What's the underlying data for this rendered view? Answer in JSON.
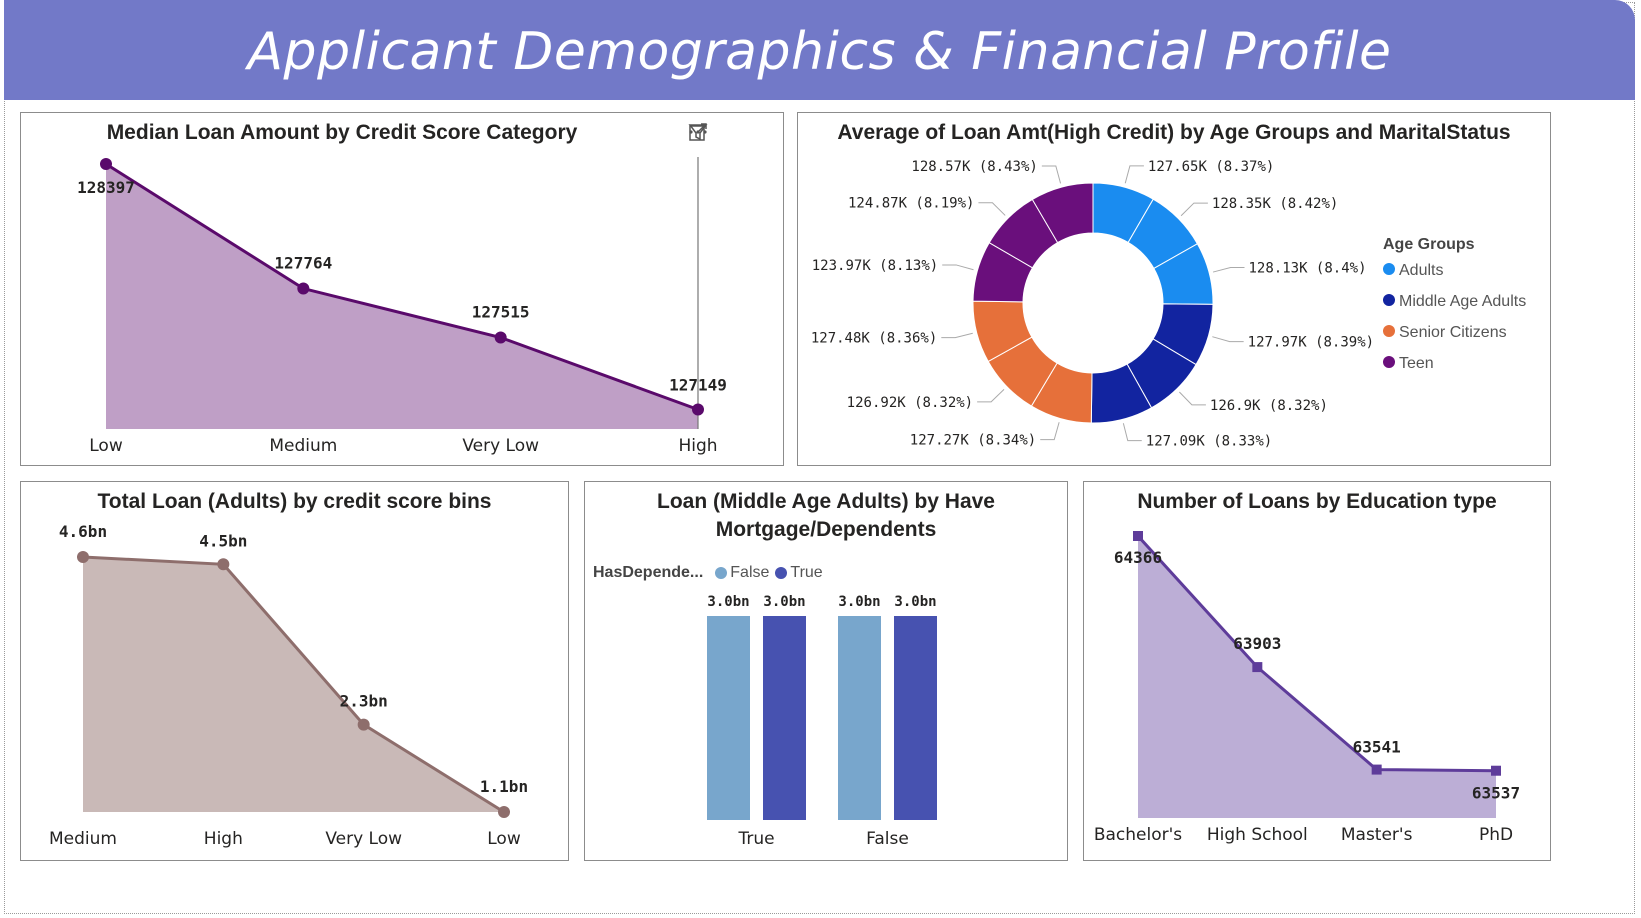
{
  "page": {
    "title": "Applicant Demographics & Financial Profile"
  },
  "header_icons": [
    "filter-icon",
    "focus-mode-icon",
    "more-options-icon"
  ],
  "chart_data": [
    {
      "id": "median_loan",
      "type": "area",
      "title": "Median Loan Amount by Credit Score Category",
      "categories": [
        "Low",
        "Medium",
        "Very Low",
        "High"
      ],
      "values": [
        128397,
        127764,
        127515,
        127149
      ],
      "value_labels": [
        "128397",
        "127764",
        "127515",
        "127149"
      ],
      "ylim": [
        127050,
        128397
      ],
      "line_color": "#5a0a6b",
      "fill_color": "#bf9fc6"
    },
    {
      "id": "avg_loan_donut",
      "type": "pie",
      "title": "Average of Loan Amt(High Credit) by Age Groups and MaritalStatus",
      "legend": {
        "title": "Age Groups",
        "position": "right",
        "items": [
          {
            "name": "Adults",
            "color": "#1a8cf0"
          },
          {
            "name": "Middle Age Adults",
            "color": "#1224a0"
          },
          {
            "name": "Senior Citizens",
            "color": "#e6703a"
          },
          {
            "name": "Teen",
            "color": "#6a0f7c"
          }
        ]
      },
      "slices": [
        {
          "label": "127.65K (8.37%)",
          "value": 127.65,
          "group": "Adults"
        },
        {
          "label": "128.35K (8.42%)",
          "value": 128.35,
          "group": "Adults"
        },
        {
          "label": "128.13K (8.4%)",
          "value": 128.13,
          "group": "Adults"
        },
        {
          "label": "127.97K (8.39%)",
          "value": 127.97,
          "group": "Middle Age Adults"
        },
        {
          "label": "126.9K (8.32%)",
          "value": 126.9,
          "group": "Middle Age Adults"
        },
        {
          "label": "127.09K (8.33%)",
          "value": 127.09,
          "group": "Middle Age Adults"
        },
        {
          "label": "127.27K (8.34%)",
          "value": 127.27,
          "group": "Senior Citizens"
        },
        {
          "label": "126.92K (8.32%)",
          "value": 126.92,
          "group": "Senior Citizens"
        },
        {
          "label": "127.48K (8.36%)",
          "value": 127.48,
          "group": "Senior Citizens"
        },
        {
          "label": "123.97K (8.13%)",
          "value": 123.97,
          "group": "Teen"
        },
        {
          "label": "124.87K (8.19%)",
          "value": 124.87,
          "group": "Teen"
        },
        {
          "label": "128.57K (8.43%)",
          "value": 128.57,
          "group": "Teen"
        }
      ]
    },
    {
      "id": "total_loan_adults",
      "type": "area",
      "title": "Total Loan (Adults) by credit score bins",
      "categories": [
        "Medium",
        "High",
        "Very Low",
        "Low"
      ],
      "values": [
        4.6,
        4.5,
        2.3,
        1.1
      ],
      "value_labels": [
        "4.6bn",
        "4.5bn",
        "2.3bn",
        "1.1bn"
      ],
      "ylim": [
        1.1,
        4.6
      ],
      "line_color": "#8e6e6c",
      "fill_color": "#c9b9b7"
    },
    {
      "id": "loan_mid_age",
      "type": "bar",
      "title": "Loan (Middle Age Adults) by Have Mortgage/Dependents",
      "legend": {
        "title": "HasDepende...",
        "items": [
          {
            "name": "False",
            "color": "#78a6cc"
          },
          {
            "name": "True",
            "color": "#4752b0"
          }
        ]
      },
      "categories": [
        "True",
        "False"
      ],
      "series": [
        {
          "name": "False",
          "values": [
            3.0,
            3.0
          ],
          "labels": [
            "3.0bn",
            "3.0bn"
          ]
        },
        {
          "name": "True",
          "values": [
            3.0,
            3.0
          ],
          "labels": [
            "3.0bn",
            "3.0bn"
          ]
        }
      ],
      "ylim": [
        0,
        3.0
      ]
    },
    {
      "id": "num_loans_edu",
      "type": "area",
      "title": "Number of Loans by Education type",
      "categories": [
        "Bachelor's",
        "High School",
        "Master's",
        "PhD"
      ],
      "values": [
        64366,
        63903,
        63541,
        63537
      ],
      "value_labels": [
        "64366",
        "63903",
        "63541",
        "63537"
      ],
      "ylim": [
        63370,
        64366
      ],
      "line_color": "#5e3c9a",
      "fill_color": "#bcaed6"
    }
  ]
}
